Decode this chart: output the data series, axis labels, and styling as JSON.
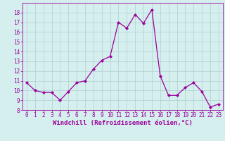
{
  "x": [
    0,
    1,
    2,
    3,
    4,
    5,
    6,
    7,
    8,
    9,
    10,
    11,
    12,
    13,
    14,
    15,
    16,
    17,
    18,
    19,
    20,
    21,
    22,
    23
  ],
  "y": [
    10.8,
    10.0,
    9.8,
    9.8,
    9.0,
    9.9,
    10.8,
    11.0,
    12.2,
    13.1,
    13.5,
    17.0,
    16.4,
    17.8,
    16.9,
    18.3,
    11.5,
    9.5,
    9.5,
    10.3,
    10.8,
    9.9,
    8.3,
    8.6
  ],
  "line_color": "#9b009b",
  "marker": "D",
  "marker_size": 2.0,
  "bg_color": "#d5efef",
  "grid_color": "#b0cece",
  "xlabel": "Windchill (Refroidissement éolien,°C)",
  "xlabel_color": "#9b009b",
  "tick_color": "#9b009b",
  "spine_color": "#9b009b",
  "xlim": [
    -0.5,
    23.5
  ],
  "ylim": [
    8,
    19
  ],
  "yticks": [
    8,
    9,
    10,
    11,
    12,
    13,
    14,
    15,
    16,
    17,
    18
  ],
  "xticks": [
    0,
    1,
    2,
    3,
    4,
    5,
    6,
    7,
    8,
    9,
    10,
    11,
    12,
    13,
    14,
    15,
    16,
    17,
    18,
    19,
    20,
    21,
    22,
    23
  ],
  "tick_fontsize": 5.5,
  "xlabel_fontsize": 6.5,
  "linewidth": 0.9
}
